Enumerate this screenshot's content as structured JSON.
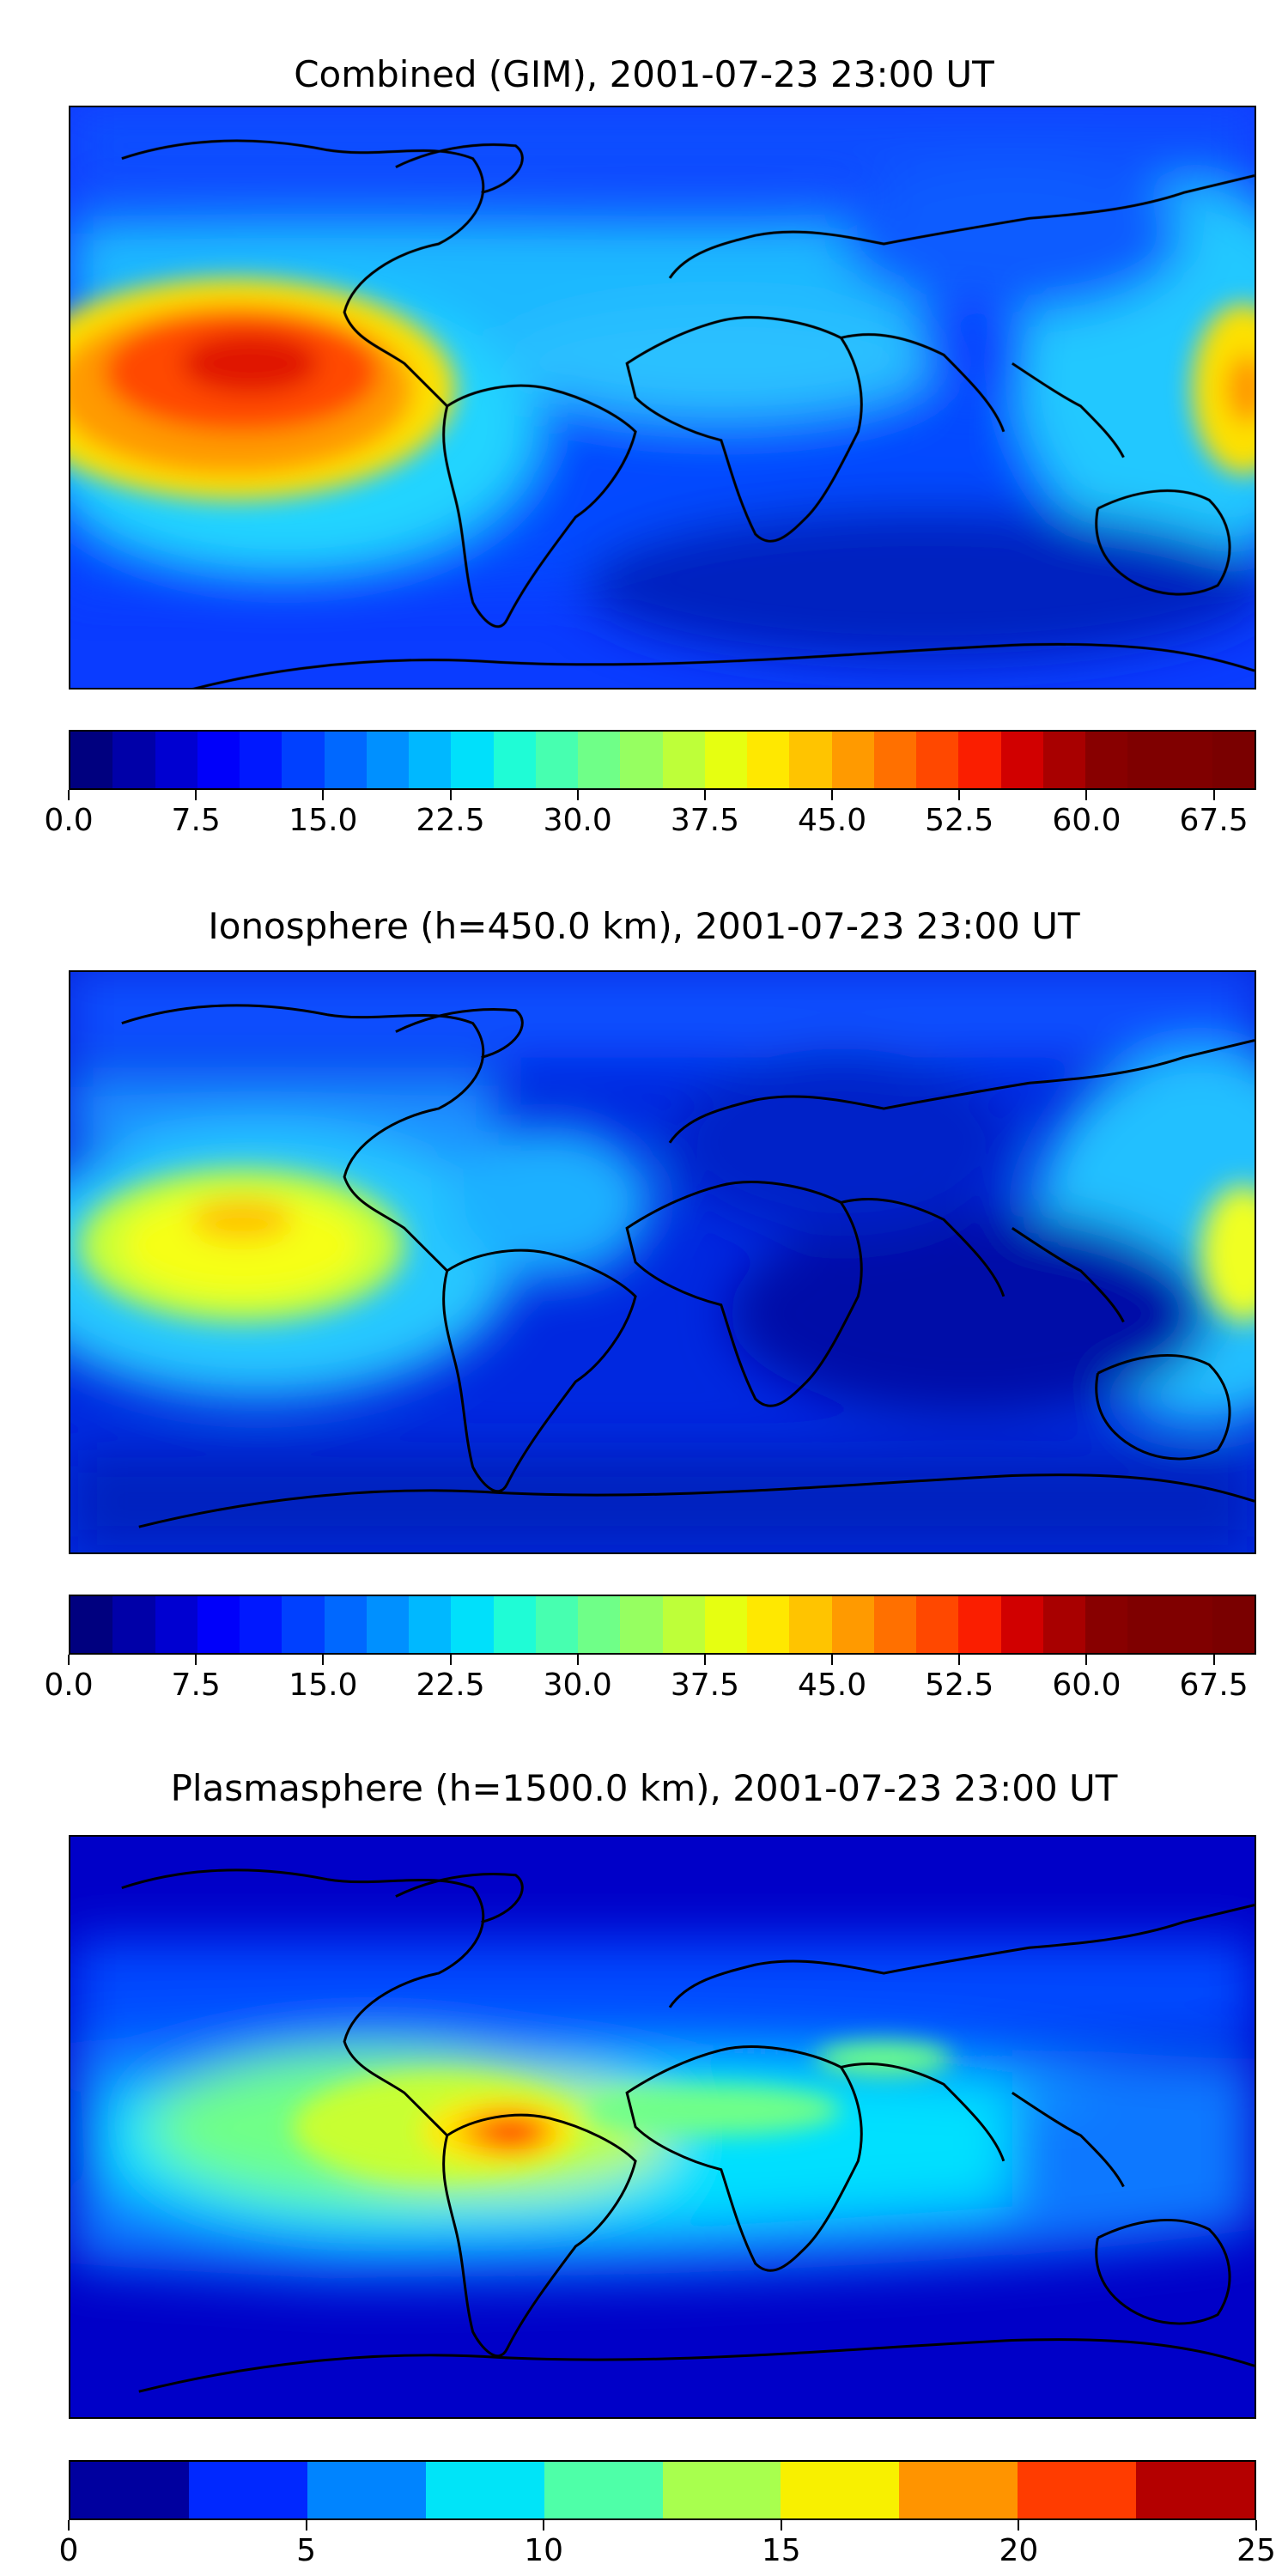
{
  "panels": [
    {
      "title": "Combined (GIM), 2001-07-23 23:00 UT",
      "colorbar": {
        "min": 0.0,
        "max": 70.0,
        "step": 2.5,
        "tick_labels": [
          "0.0",
          "7.5",
          "15.0",
          "22.5",
          "30.0",
          "37.5",
          "45.0",
          "52.5",
          "60.0",
          "67.5"
        ],
        "tick_values": [
          0.0,
          7.5,
          15.0,
          22.5,
          30.0,
          37.5,
          45.0,
          52.5,
          60.0,
          67.5
        ]
      },
      "field_maximum_approx": 65,
      "field_background_approx": 12
    },
    {
      "title": "Ionosphere  (h=450.0 km), 2001-07-23 23:00 UT",
      "colorbar": {
        "min": 0.0,
        "max": 70.0,
        "step": 2.5,
        "tick_labels": [
          "0.0",
          "7.5",
          "15.0",
          "22.5",
          "30.0",
          "37.5",
          "45.0",
          "52.5",
          "60.0",
          "67.5"
        ],
        "tick_values": [
          0.0,
          7.5,
          15.0,
          22.5,
          30.0,
          37.5,
          45.0,
          52.5,
          60.0,
          67.5
        ]
      },
      "field_maximum_approx": 45,
      "field_background_approx": 10
    },
    {
      "title": "Plasmasphere (h=1500.0 km), 2001-07-23 23:00 UT",
      "colorbar": {
        "min": 0,
        "max": 25,
        "step": 2.5,
        "tick_labels": [
          "0",
          "5",
          "10",
          "15",
          "20",
          "25"
        ],
        "tick_values": [
          0,
          5,
          10,
          15,
          20,
          25
        ]
      },
      "field_maximum_approx": 20,
      "field_background_approx": 3
    }
  ],
  "colormap": "jet"
}
